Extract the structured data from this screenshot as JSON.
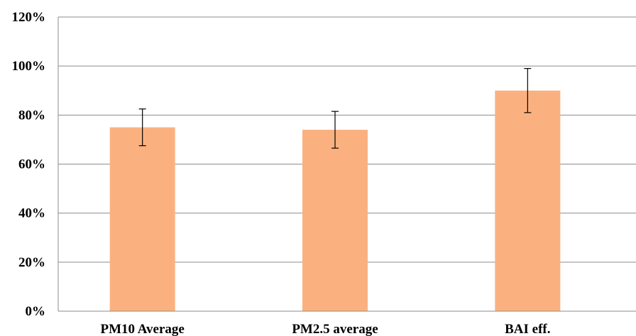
{
  "chart_data": {
    "type": "bar",
    "categories": [
      "PM10 Average",
      "PM2.5 average",
      "BAI eff."
    ],
    "values": [
      75,
      74,
      90
    ],
    "errors": [
      {
        "low": 67.5,
        "high": 82.5
      },
      {
        "low": 66.5,
        "high": 81.5
      },
      {
        "low": 81,
        "high": 99
      }
    ],
    "y_unit": "%",
    "ylim": [
      0,
      120
    ],
    "yticks": [
      0,
      20,
      40,
      60,
      80,
      100,
      120
    ],
    "ytick_labels": [
      "0%",
      "20%",
      "40%",
      "60%",
      "80%",
      "100%",
      "120%"
    ],
    "grid": true,
    "legend": "none",
    "bar_color": "#FBB17F",
    "title": "",
    "xlabel": "",
    "ylabel": ""
  }
}
